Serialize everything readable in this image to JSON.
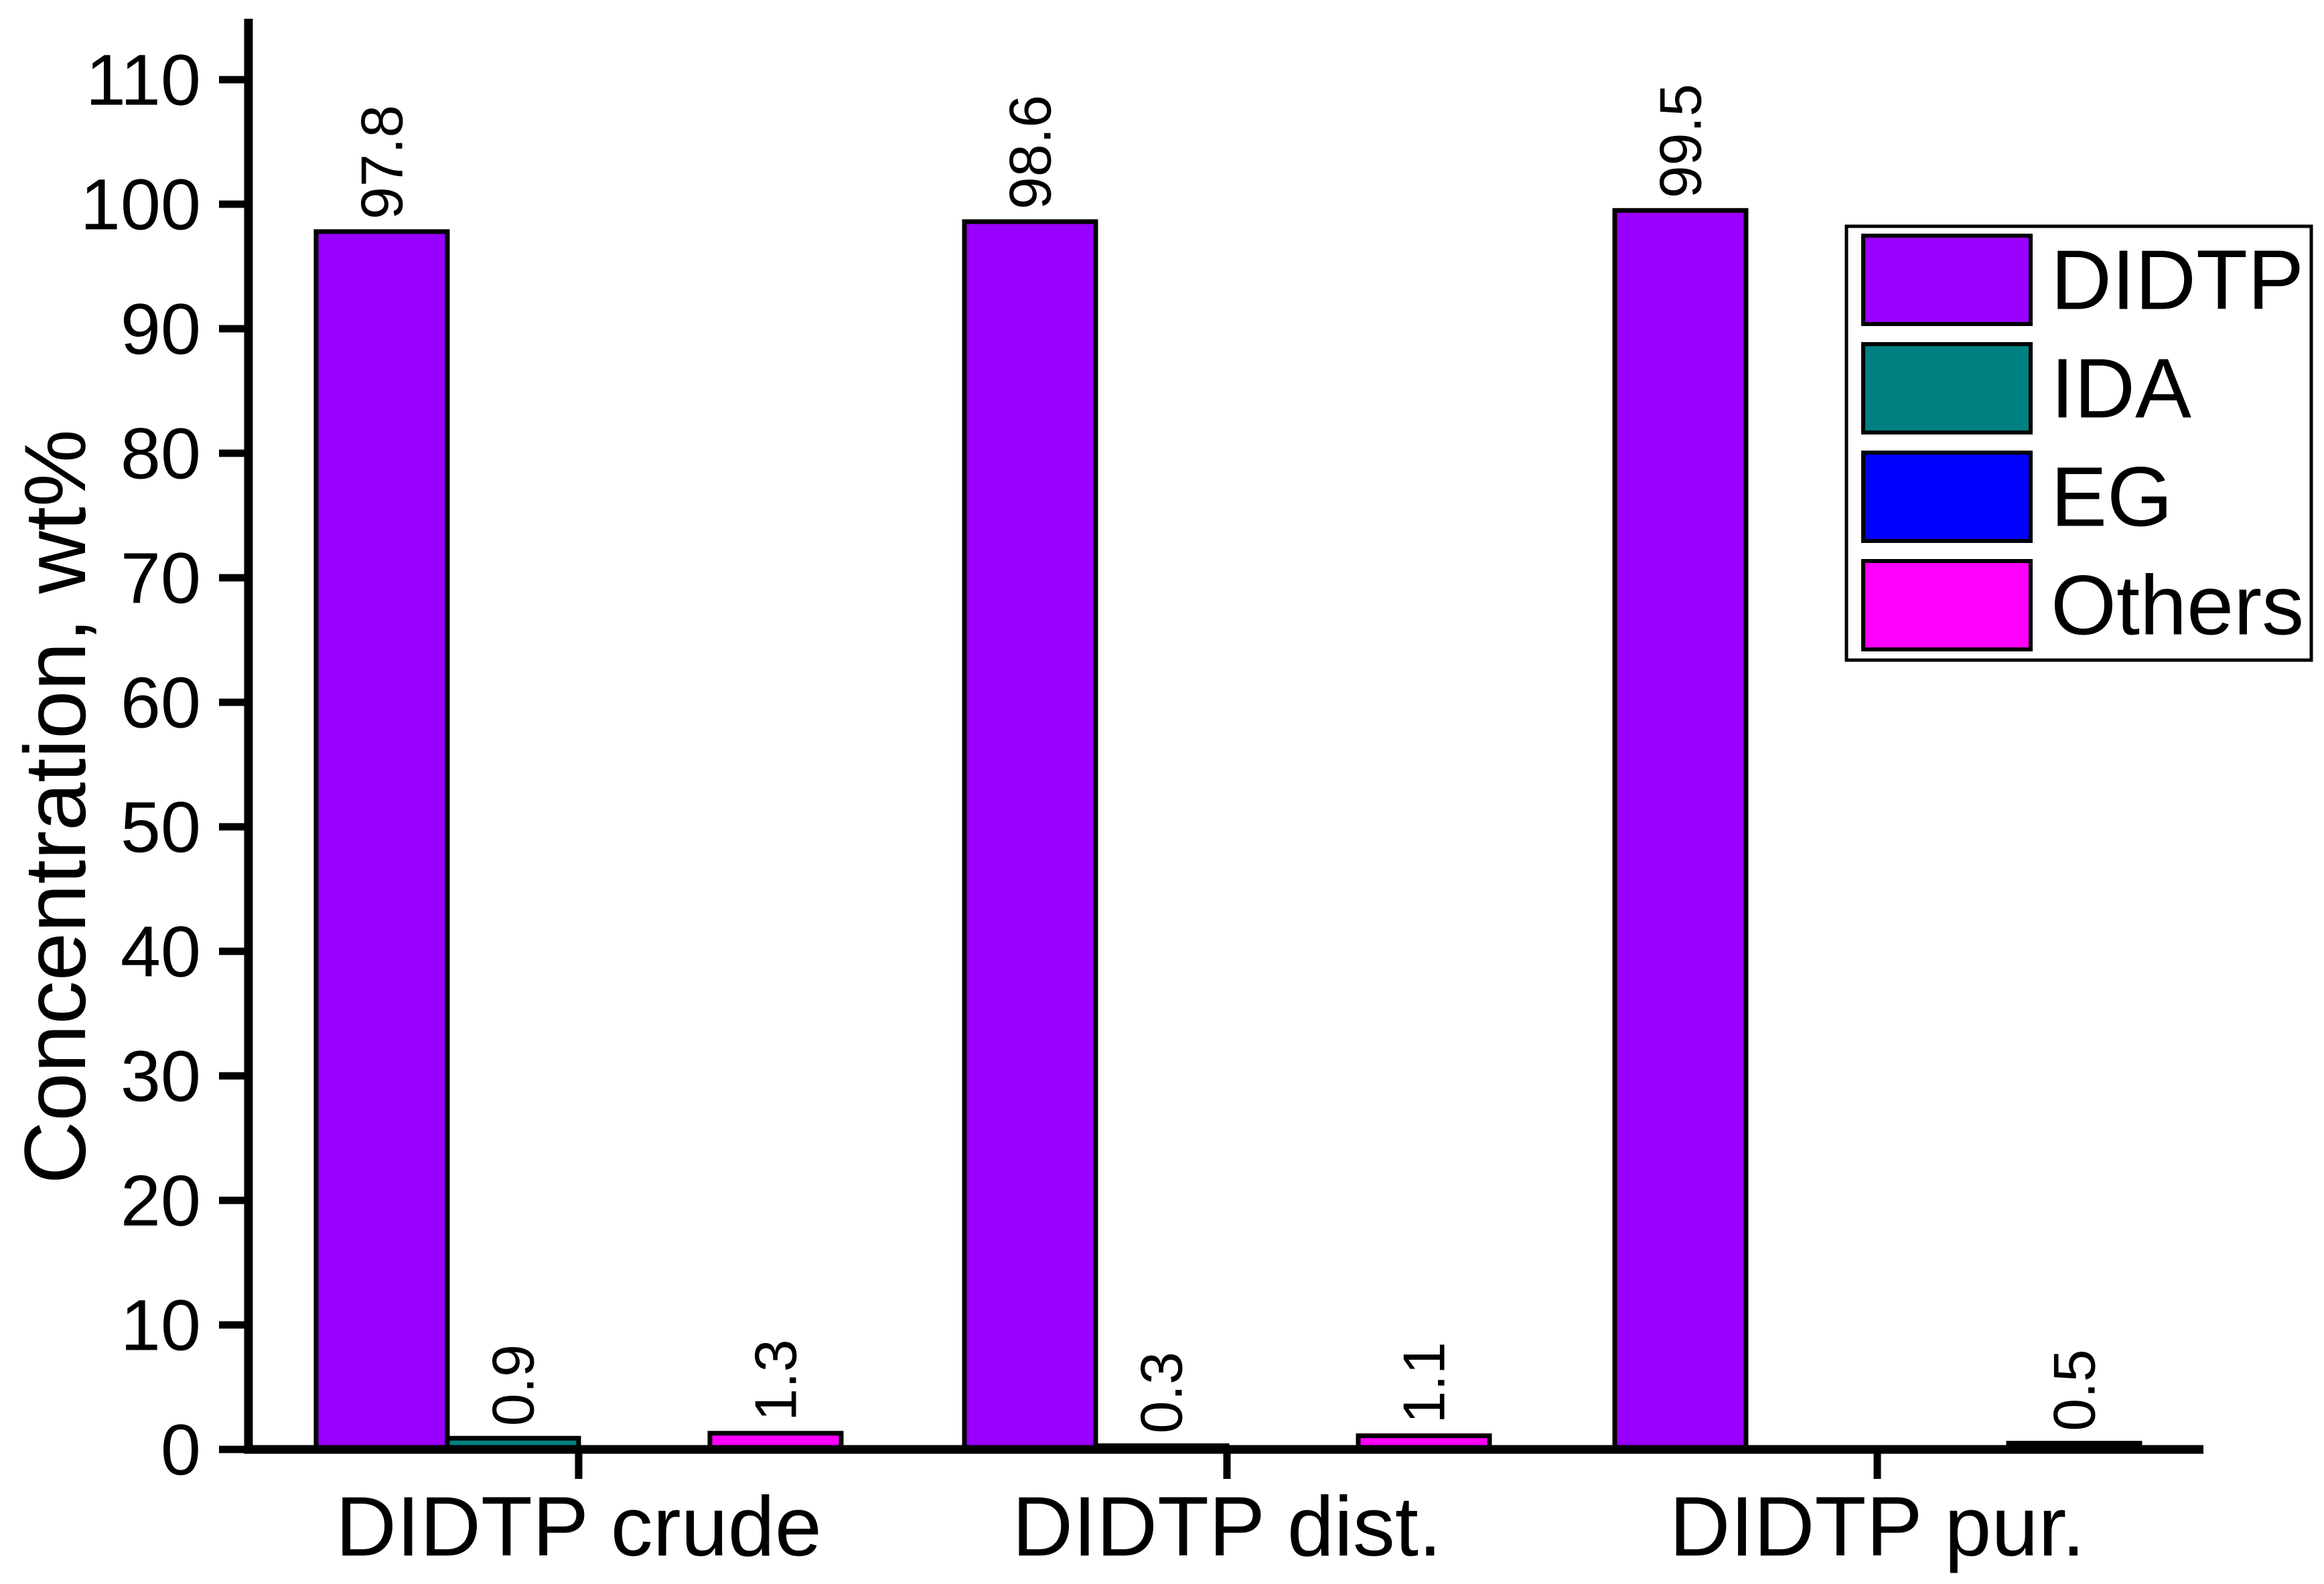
{
  "chart_data": {
    "type": "bar",
    "title": "",
    "xlabel": "",
    "ylabel": "Concentration, wt%",
    "ylim": [
      0,
      115
    ],
    "yticks": [
      0,
      10,
      20,
      30,
      40,
      50,
      60,
      70,
      80,
      90,
      100,
      110
    ],
    "grid": false,
    "background_color": "#ffffff",
    "axis_color": "#000000",
    "bar_outline_color": "#000000",
    "value_label_rotation": -90,
    "categories": [
      "DIDTP crude",
      "DIDTP dist.",
      "DIDTP pur."
    ],
    "series": [
      {
        "name": "DIDTP",
        "color": "#9900ff",
        "values": [
          97.8,
          98.6,
          99.5
        ],
        "value_labels": [
          "97.8",
          "98.6",
          "99.5"
        ]
      },
      {
        "name": "IDA",
        "color": "#008080",
        "values": [
          0.9,
          0.3,
          0
        ],
        "value_labels": [
          "0.9",
          "0.3",
          ""
        ]
      },
      {
        "name": "EG",
        "color": "#0000ff",
        "values": [
          0,
          0,
          0
        ],
        "value_labels": [
          "",
          "",
          ""
        ]
      },
      {
        "name": "Others",
        "color": "#ff00ff",
        "values": [
          1.3,
          1.1,
          0.5
        ],
        "value_labels": [
          "1.3",
          "1.1",
          "0.5"
        ]
      }
    ],
    "legend": {
      "position": "upper-right",
      "entries": [
        "DIDTP",
        "IDA",
        "EG",
        "Others"
      ]
    }
  }
}
